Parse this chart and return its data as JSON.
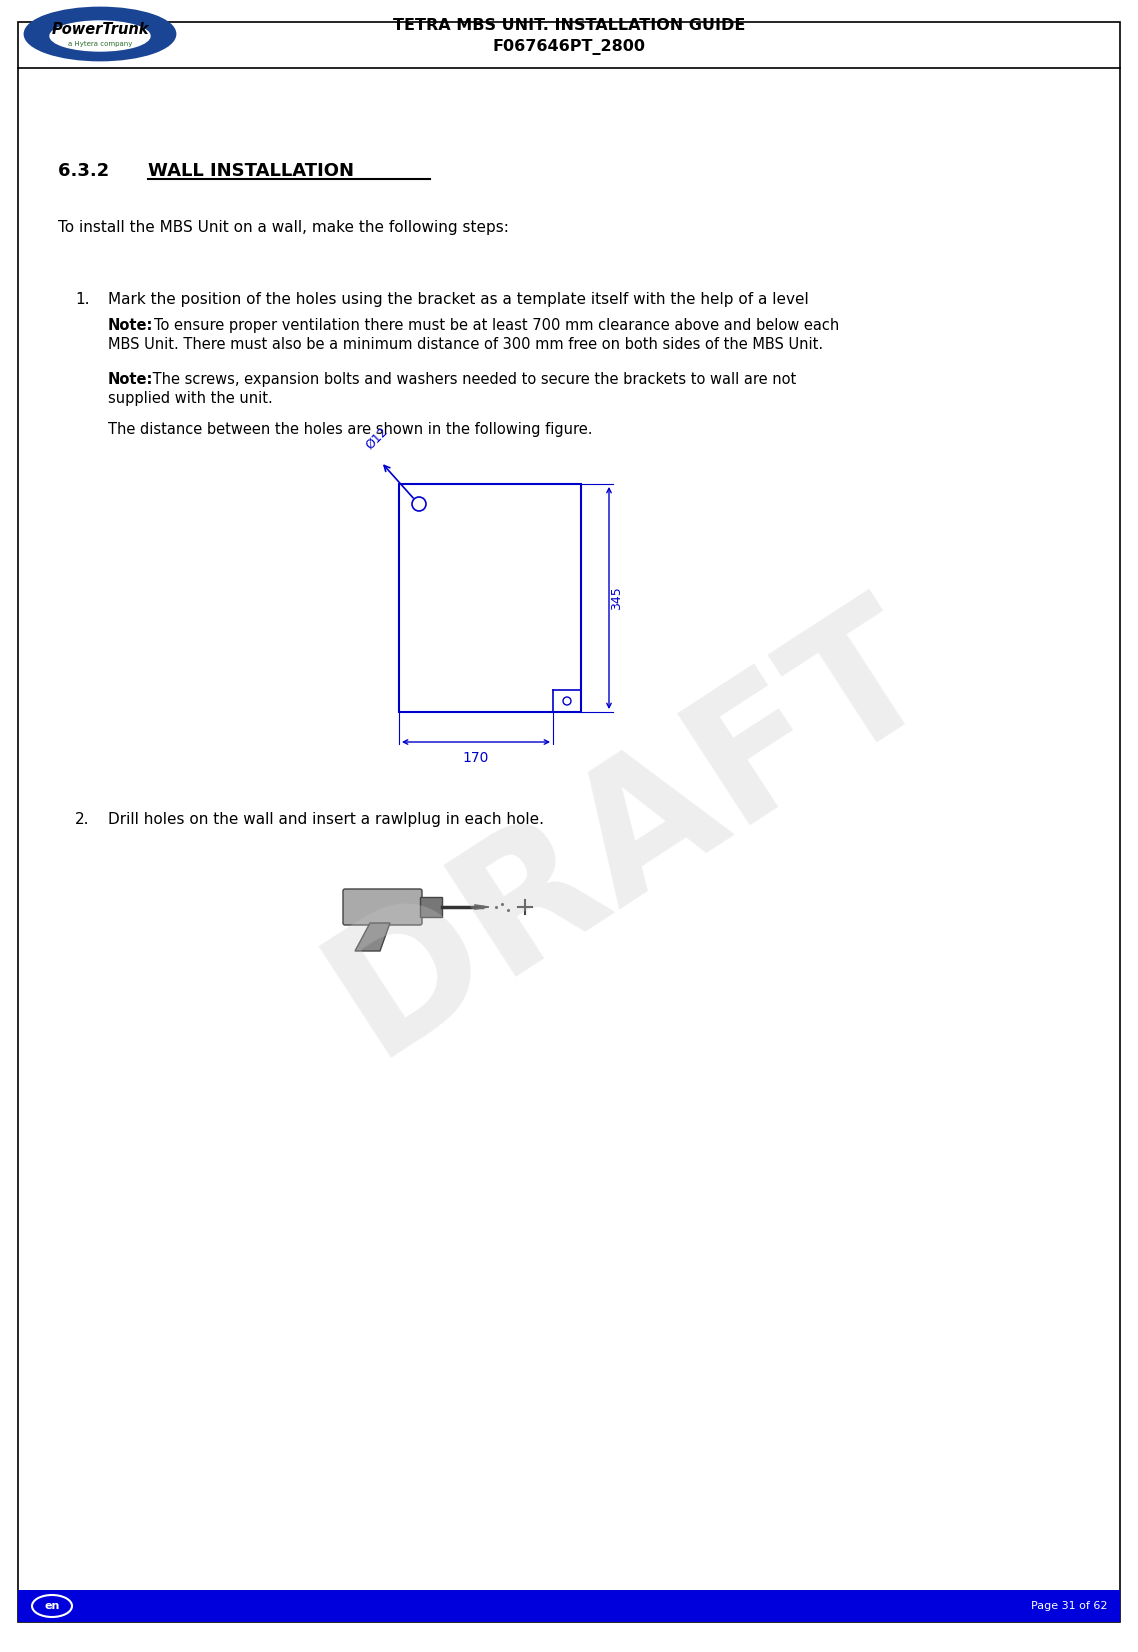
{
  "page_bg": "#ffffff",
  "border_color": "#000000",
  "header_line_color": "#000000",
  "header_text1": "TETRA MBS UNIT. INSTALLATION GUIDE",
  "header_text2": "F067646PT_2800",
  "footer_bg": "#0000dd",
  "footer_text_left": "en",
  "footer_text_right": "Page 31 of 62",
  "footer_text_color": "#ffffff",
  "section_title": "6.3.2   WALL INSTALLATION",
  "intro_text": "To install the MBS Unit on a wall, make the following steps:",
  "step1_main": "Mark the position of the holes using the bracket as a template itself with the help of a level",
  "step1_note1_bold": "Note:",
  "step1_note1_line2": "MBS Unit. There must also be a minimum distance of 300 mm free on both sides of the MBS Unit.",
  "step1_note2_bold": "Note",
  "step1_note2_line1": " The screws, expansion bolts and washers needed to secure the brackets to wall are not",
  "step1_note2_line2": "supplied with the unit.",
  "step1_fig_text": "The distance between the holes are shown in the following figure.",
  "step2_text": "Drill holes on the wall and insert a rawlplug in each hole.",
  "dim_345": "345",
  "dim_170": "170",
  "dim_12": "Ø12",
  "draft_text": "DRAFT",
  "draft_color": "#c8c8c8",
  "blue_color": "#0000cc",
  "note1_after_bold": "To ensure proper ventilation there must be at least 700 mm clearance above and below each"
}
